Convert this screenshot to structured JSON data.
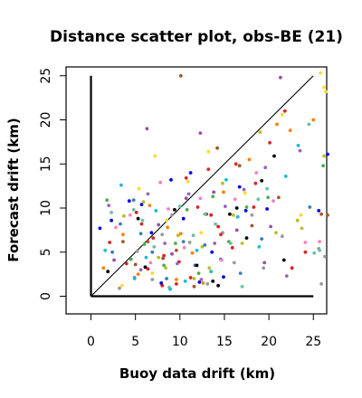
{
  "chart_data": {
    "type": "scatter",
    "title": "Distance scatter plot, obs-BE (21)",
    "xlabel": "Buoy data drift (km)",
    "ylabel": "Forecast drift (km)",
    "xlim": [
      -2.8,
      26.5
    ],
    "ylim": [
      -2,
      26
    ],
    "xticks": [
      0,
      5,
      10,
      15,
      20,
      25
    ],
    "yticks": [
      0,
      5,
      10,
      15,
      20,
      25
    ],
    "grid": false,
    "reference_lines": [
      {
        "type": "diagonal",
        "from": [
          0,
          0
        ],
        "to": [
          25,
          25
        ]
      },
      {
        "type": "vertical",
        "from": [
          0,
          0
        ],
        "to": [
          0,
          25
        ]
      },
      {
        "type": "horizontal",
        "from": [
          0,
          0
        ],
        "to": [
          25,
          0
        ]
      }
    ],
    "series": [
      {
        "color": "#e41a1c",
        "points": [
          [
            2.1,
            6.1
          ],
          [
            5.1,
            9.5
          ],
          [
            6.4,
            3.1
          ],
          [
            8.0,
            1.2
          ],
          [
            9.9,
            3.9
          ],
          [
            11.2,
            2.1
          ],
          [
            13.5,
            9.2
          ],
          [
            14.3,
            7.9
          ],
          [
            15.9,
            5.5
          ],
          [
            18.3,
            10.1
          ],
          [
            22.6,
            3.2
          ],
          [
            24.1,
            5.0
          ]
        ]
      },
      {
        "color": "#377eb8",
        "points": [
          [
            2.4,
            5.0
          ],
          [
            3.3,
            8.2
          ],
          [
            4.8,
            10.9
          ],
          [
            5.6,
            7.1
          ],
          [
            6.9,
            5.0
          ],
          [
            8.5,
            2.0
          ],
          [
            10.4,
            6.2
          ],
          [
            11.7,
            3.5
          ],
          [
            12.8,
            5.8
          ],
          [
            14.6,
            4.2
          ],
          [
            16.8,
            2.6
          ],
          [
            19.2,
            6.5
          ],
          [
            24.6,
            10.1
          ]
        ]
      },
      {
        "color": "#4daf4a",
        "points": [
          [
            1.8,
            10.9
          ],
          [
            4.5,
            4.2
          ],
          [
            6.0,
            5.9
          ],
          [
            8.2,
            3.5
          ],
          [
            9.5,
            6.0
          ],
          [
            10.8,
            9.8
          ],
          [
            12.1,
            2.6
          ],
          [
            13.7,
            11.3
          ],
          [
            15.5,
            6.2
          ],
          [
            17.5,
            10.1
          ],
          [
            19.9,
            11.2
          ],
          [
            26.1,
            14.8
          ]
        ]
      },
      {
        "color": "#984ea3",
        "points": [
          [
            2.6,
            4.1
          ],
          [
            4.9,
            2.1
          ],
          [
            6.3,
            19.0
          ],
          [
            7.6,
            8.1
          ],
          [
            9.1,
            4.8
          ],
          [
            10.7,
            11.1
          ],
          [
            12.3,
            18.5
          ],
          [
            13.8,
            11.8
          ],
          [
            16.4,
            7.5
          ],
          [
            19.5,
            3.8
          ],
          [
            20.2,
            7.9
          ],
          [
            21.3,
            24.8
          ]
        ]
      },
      {
        "color": "#ff7f00",
        "points": [
          [
            1.4,
            3.2
          ],
          [
            3.6,
            7.0
          ],
          [
            5.3,
            2.5
          ],
          [
            6.6,
            10.3
          ],
          [
            8.6,
            7.8
          ],
          [
            9.6,
            1.9
          ],
          [
            10.1,
            7.1
          ],
          [
            11.4,
            4.9
          ],
          [
            12.6,
            1.5
          ],
          [
            14.9,
            11.8
          ],
          [
            17.8,
            15.5
          ],
          [
            20.9,
            19.5
          ],
          [
            22.4,
            18.8
          ],
          [
            25.0,
            20.0
          ]
        ]
      },
      {
        "color": "#ffd92f",
        "points": [
          [
            3.5,
            1.2
          ],
          [
            5.4,
            12.2
          ],
          [
            6.9,
            2.6
          ],
          [
            7.2,
            15.9
          ],
          [
            8.5,
            8.6
          ],
          [
            10.9,
            13.0
          ],
          [
            12.4,
            7.2
          ],
          [
            13.2,
            16.4
          ],
          [
            17.3,
            11.7
          ],
          [
            21.5,
            20.6
          ],
          [
            23.6,
            9.2
          ],
          [
            25.8,
            25.3
          ],
          [
            26.2,
            23.7
          ],
          [
            26.4,
            23.2
          ]
        ]
      },
      {
        "color": "#a65628",
        "points": [
          [
            3.6,
            6.2
          ],
          [
            5.0,
            3.6
          ],
          [
            6.4,
            6.2
          ],
          [
            8.1,
            4.3
          ],
          [
            9.6,
            5.2
          ],
          [
            10.1,
            25.0
          ],
          [
            11.6,
            1.1
          ],
          [
            13.0,
            9.3
          ],
          [
            14.2,
            16.8
          ],
          [
            16.7,
            14.8
          ],
          [
            18.1,
            8.0
          ],
          [
            21.1,
            11.2
          ],
          [
            25.9,
            9.3
          ],
          [
            26.6,
            9.2
          ]
        ]
      },
      {
        "color": "#f781bf",
        "points": [
          [
            2.8,
            7.8
          ],
          [
            4.4,
            9.2
          ],
          [
            6.7,
            3.8
          ],
          [
            7.8,
            12.9
          ],
          [
            8.7,
            9.9
          ],
          [
            10.5,
            5.5
          ],
          [
            12.3,
            11.1
          ],
          [
            14.7,
            4.1
          ],
          [
            16.2,
            11.0
          ],
          [
            18.6,
            14.0
          ],
          [
            20.5,
            10.8
          ],
          [
            24.1,
            6.1
          ],
          [
            25.7,
            6.2
          ]
        ]
      },
      {
        "color": "#999999",
        "points": [
          [
            3.2,
            0.9
          ],
          [
            5.2,
            5.1
          ],
          [
            6.9,
            1.9
          ],
          [
            8.0,
            7.0
          ],
          [
            9.1,
            9.2
          ],
          [
            11.1,
            6.1
          ],
          [
            13.1,
            1.4
          ],
          [
            14.8,
            7.2
          ],
          [
            16.1,
            3.8
          ],
          [
            18.1,
            9.2
          ],
          [
            19.4,
            3.2
          ],
          [
            21.5,
            6.8
          ],
          [
            25.6,
            5.4
          ],
          [
            25.9,
            1.4
          ],
          [
            26.3,
            4.5
          ]
        ]
      },
      {
        "color": "#66c2a5",
        "points": [
          [
            2.3,
            9.5
          ],
          [
            4.8,
            9.8
          ],
          [
            5.8,
            8.6
          ],
          [
            7.1,
            5.6
          ],
          [
            8.8,
            1.0
          ],
          [
            10.0,
            10.2
          ],
          [
            11.5,
            6.9
          ],
          [
            12.8,
            9.3
          ],
          [
            14.0,
            8.2
          ],
          [
            15.7,
            6.0
          ],
          [
            17.0,
            1.1
          ],
          [
            18.8,
            11.0
          ],
          [
            19.8,
            12.2
          ],
          [
            24.5,
            19.5
          ],
          [
            25.1,
            4.9
          ],
          [
            25.7,
            5.2
          ]
        ]
      },
      {
        "color": "#0000ee",
        "points": [
          [
            1.0,
            7.7
          ],
          [
            2.3,
            8.6
          ],
          [
            4.3,
            10.8
          ],
          [
            5.7,
            10.4
          ],
          [
            6.8,
            7.2
          ],
          [
            7.9,
            1.5
          ],
          [
            9.0,
            13.2
          ],
          [
            10.4,
            8.8
          ],
          [
            11.2,
            14.0
          ],
          [
            12.2,
            1.6
          ],
          [
            13.6,
            5.0
          ],
          [
            14.9,
            2.2
          ],
          [
            16.7,
            12.4
          ],
          [
            17.4,
            9.7
          ],
          [
            19.8,
            9.9
          ],
          [
            26.6,
            16.1
          ],
          [
            25.6,
            9.7
          ]
        ]
      },
      {
        "color": "#000000",
        "points": [
          [
            1.9,
            2.8
          ],
          [
            5.3,
            8.8
          ],
          [
            6.1,
            3.3
          ],
          [
            9.4,
            9.8
          ],
          [
            11.9,
            3.5
          ],
          [
            13.7,
            1.7
          ],
          [
            14.3,
            1.2
          ],
          [
            15.6,
            9.3
          ],
          [
            16.4,
            10.0
          ],
          [
            17.5,
            6.6
          ],
          [
            19.2,
            13.1
          ],
          [
            20.6,
            15.9
          ],
          [
            21.7,
            4.1
          ]
        ]
      },
      {
        "color": "#bcbd22",
        "points": [
          [
            3.7,
            9.1
          ],
          [
            5.9,
            10.7
          ],
          [
            7.6,
            4.4
          ],
          [
            8.4,
            3.2
          ],
          [
            9.8,
            6.9
          ],
          [
            11.6,
            2.0
          ],
          [
            12.5,
            5.6
          ],
          [
            13.3,
            3.2
          ],
          [
            14.8,
            12.8
          ],
          [
            16.0,
            9.2
          ],
          [
            17.0,
            6.0
          ],
          [
            19.0,
            18.6
          ],
          [
            20.8,
            7.2
          ],
          [
            23.2,
            8.6
          ],
          [
            23.7,
            7.7
          ],
          [
            26.2,
            15.9
          ]
        ]
      },
      {
        "color": "#17becf",
        "points": [
          [
            1.6,
            5.2
          ],
          [
            3.4,
            12.6
          ],
          [
            4.9,
            2.0
          ],
          [
            6.2,
            4.4
          ],
          [
            7.3,
            9.7
          ],
          [
            8.9,
            0.8
          ],
          [
            10.6,
            1.7
          ],
          [
            11.9,
            5.2
          ],
          [
            13.5,
            2.8
          ],
          [
            15.2,
            13.2
          ],
          [
            16.5,
            9.0
          ],
          [
            18.9,
            5.6
          ],
          [
            21.9,
            13.6
          ],
          [
            23.3,
            17.1
          ]
        ]
      },
      {
        "color": "#d62728",
        "points": [
          [
            4.0,
            3.7
          ],
          [
            5.7,
            8.2
          ],
          [
            7.0,
            6.6
          ],
          [
            8.2,
            4.6
          ],
          [
            9.6,
            1.4
          ],
          [
            10.7,
            13.4
          ],
          [
            12.0,
            10.1
          ],
          [
            13.2,
            14.4
          ],
          [
            14.6,
            7.0
          ],
          [
            16.3,
            15.0
          ],
          [
            18.5,
            12.8
          ],
          [
            20.1,
            17.4
          ],
          [
            21.8,
            21.0
          ]
        ]
      },
      {
        "color": "#9467bd",
        "points": [
          [
            2.0,
            10.3
          ],
          [
            5.6,
            3.0
          ],
          [
            6.4,
            11.6
          ],
          [
            8.3,
            6.0
          ],
          [
            9.7,
            3.7
          ],
          [
            11.0,
            11.6
          ],
          [
            12.4,
            1.9
          ],
          [
            13.9,
            6.0
          ],
          [
            15.1,
            10.2
          ],
          [
            17.2,
            12.1
          ],
          [
            19.6,
            14.6
          ],
          [
            22.0,
            2.3
          ],
          [
            23.5,
            16.5
          ]
        ]
      }
    ]
  }
}
